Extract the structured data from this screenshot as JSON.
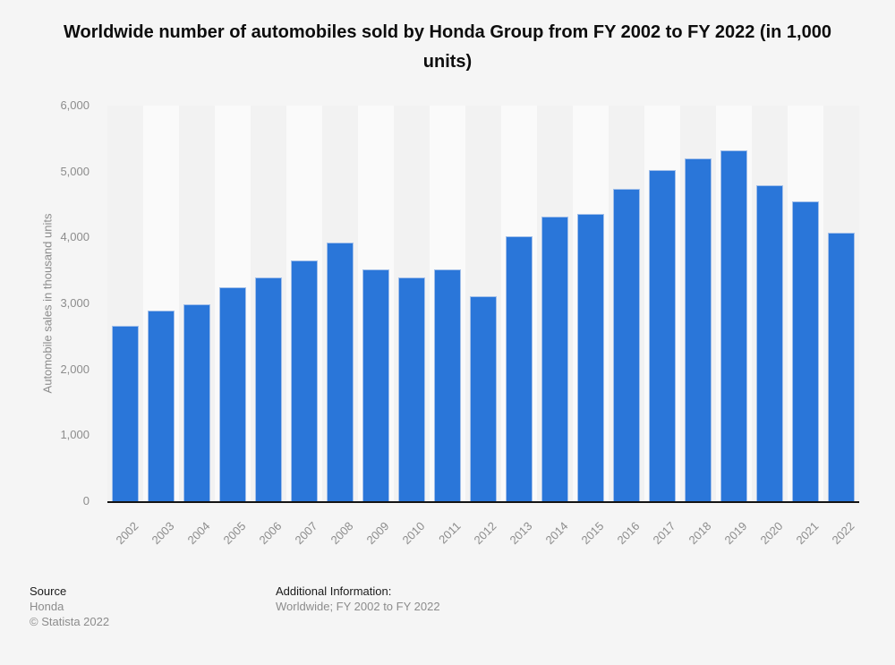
{
  "title": "Worldwide number of automobiles sold by Honda Group from FY 2002 to FY 2022 (in 1,000 units)",
  "chart_data": {
    "type": "bar",
    "title": "Worldwide number of automobiles sold by Honda Group from FY 2002 to FY 2022 (in 1,000 units)",
    "categories": [
      "2002",
      "2003",
      "2004",
      "2005",
      "2006",
      "2007",
      "2008",
      "2009",
      "2010",
      "2011",
      "2012",
      "2013",
      "2014",
      "2015",
      "2016",
      "2017",
      "2018",
      "2019",
      "2020",
      "2021",
      "2022"
    ],
    "values": [
      2666,
      2888,
      2983,
      3242,
      3391,
      3652,
      3925,
      3517,
      3392,
      3512,
      3108,
      4014,
      4323,
      4364,
      4743,
      5028,
      5199,
      5323,
      4790,
      4546,
      4074
    ],
    "xlabel": "",
    "ylabel": "Automobile sales in thousand units",
    "ylim": [
      0,
      6000
    ],
    "ytick_values": [
      0,
      1000,
      2000,
      3000,
      4000,
      5000,
      6000
    ],
    "ytick_labels": [
      "0",
      "1,000",
      "2,000",
      "3,000",
      "4,000",
      "5,000",
      "6,000"
    ],
    "grid": "horizontal dotted",
    "legend": "none"
  },
  "colors": {
    "bar_fill": "#2a76d9",
    "bar_border": "#a3c0ea",
    "page_background": "#f5f5f5",
    "stripe_odd": "#f2f2f2",
    "stripe_even": "#fafafa",
    "gridline": "#c8c8c8",
    "axis_line": "#141414",
    "title_text": "#0d0d0d",
    "muted_text": "#8c8c8c"
  },
  "footer": {
    "source_label": "Source",
    "source_value": "Honda",
    "copyright": "© Statista 2022",
    "additional_label": "Additional Information:",
    "additional_value": "Worldwide; FY 2002 to FY 2022"
  }
}
